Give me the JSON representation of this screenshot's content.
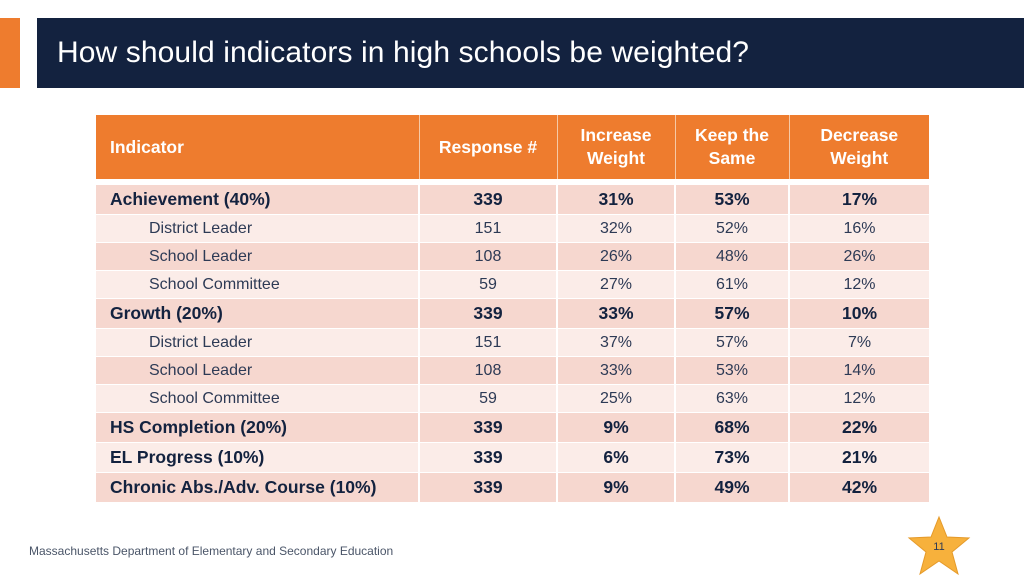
{
  "slide": {
    "title": "How should indicators in high schools be weighted?",
    "footer": "Massachusetts Department of Elementary and Secondary Education",
    "page_number": "11",
    "colors": {
      "accent": "#ee7c2e",
      "banner": "#13223f",
      "row_dark": "#f6d7cf",
      "row_light": "#fbece8"
    }
  },
  "table": {
    "headers": {
      "indicator": "Indicator",
      "response": "Response #",
      "increase_line1": "Increase",
      "increase_line2": "Weight",
      "keep_line1": "Keep the",
      "keep_line2": "Same",
      "decrease_line1": "Decrease",
      "decrease_line2": "Weight"
    },
    "rows": [
      [
        "Achievement (40%)",
        "339",
        "31%",
        "53%",
        "17%"
      ],
      [
        "District Leader",
        "151",
        "32%",
        "52%",
        "16%"
      ],
      [
        "School Leader",
        "108",
        "26%",
        "48%",
        "26%"
      ],
      [
        "School Committee",
        "59",
        "27%",
        "61%",
        "12%"
      ],
      [
        "Growth (20%)",
        "339",
        "33%",
        "57%",
        "10%"
      ],
      [
        "District Leader",
        "151",
        "37%",
        "57%",
        "7%"
      ],
      [
        "School Leader",
        "108",
        "33%",
        "53%",
        "14%"
      ],
      [
        "School Committee",
        "59",
        "25%",
        "63%",
        "12%"
      ],
      [
        "HS Completion (20%)",
        "339",
        "9%",
        "68%",
        "22%"
      ],
      [
        "EL Progress (10%)",
        "339",
        "6%",
        "73%",
        "21%"
      ],
      [
        "Chronic Abs./Adv. Course (10%)",
        "339",
        "9%",
        "49%",
        "42%"
      ]
    ]
  }
}
